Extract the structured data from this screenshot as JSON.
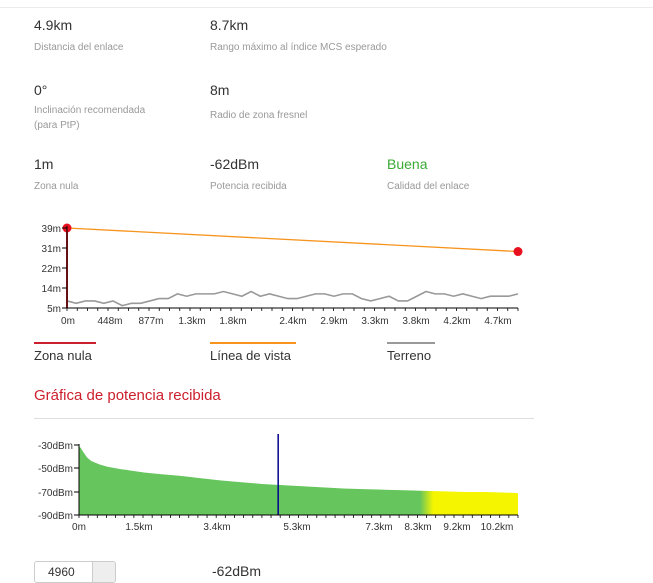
{
  "metrics": {
    "distance": {
      "value": "4.9km",
      "label": "Distancia del enlace"
    },
    "max_range": {
      "value": "8.7km",
      "label": "Rango máximo al índice MCS esperado"
    },
    "tilt": {
      "value": "0°",
      "label": "Inclinación recomendada",
      "label2": "(para PtP)"
    },
    "fresnel": {
      "value": "8m",
      "label": "Radio de zona fresnel"
    },
    "null_zone": {
      "value": "1m",
      "label": "Zona nula"
    },
    "rx_power": {
      "value": "-62dBm",
      "label": "Potencia recibida"
    },
    "quality": {
      "value": "Buena",
      "label": "Calidad del enlace"
    }
  },
  "colors": {
    "null_zone": "#cc1f2d",
    "line_of_sight": "#f7941d",
    "terrain": "#999999",
    "quality_good": "#3aaa35",
    "signal_green": "#66c55c",
    "signal_yellow": "#f5f500",
    "marker": "#00008b"
  },
  "chart_data": [
    {
      "type": "line",
      "x_tick_labels": [
        "0m",
        "448m",
        "877m",
        "1.3km",
        "1.8km",
        "2.4km",
        "2.9km",
        "3.3km",
        "3.8km",
        "4.2km",
        "4.7km"
      ],
      "y_tick_labels": [
        "39m",
        "31m",
        "22m",
        "14m",
        "5m"
      ],
      "xlim": [
        0,
        4.9
      ],
      "ylim": [
        5,
        39
      ],
      "series": [
        {
          "name": "Zona nula",
          "x": [
            0,
            0
          ],
          "y": [
            5,
            39
          ]
        },
        {
          "name": "Línea de vista",
          "x": [
            0,
            4.9
          ],
          "y": [
            39,
            29
          ]
        },
        {
          "name": "Terreno",
          "x": [
            0,
            0.1,
            0.2,
            0.3,
            0.4,
            0.5,
            0.6,
            0.7,
            0.8,
            0.9,
            1.0,
            1.1,
            1.2,
            1.3,
            1.4,
            1.5,
            1.6,
            1.7,
            1.8,
            1.9,
            2.0,
            2.1,
            2.2,
            2.3,
            2.4,
            2.5,
            2.6,
            2.7,
            2.8,
            2.9,
            3.0,
            3.1,
            3.2,
            3.3,
            3.4,
            3.5,
            3.6,
            3.7,
            3.8,
            3.9,
            4.0,
            4.1,
            4.2,
            4.3,
            4.4,
            4.5,
            4.6,
            4.7,
            4.8,
            4.9
          ],
          "y": [
            8,
            7,
            8,
            8,
            7,
            8,
            6,
            7,
            7,
            8,
            9,
            9,
            11,
            10,
            11,
            11,
            11,
            12,
            11,
            10,
            12,
            10,
            11,
            10,
            9,
            9,
            10,
            11,
            11,
            10,
            11,
            11,
            9,
            8,
            9,
            10,
            8,
            8,
            10,
            12,
            11,
            11,
            10,
            11,
            10,
            9,
            10,
            10,
            10,
            11
          ]
        }
      ],
      "legend": [
        "Zona nula",
        "Línea de vista",
        "Terreno"
      ]
    },
    {
      "type": "area",
      "title": "Gráfica de potencia recibida",
      "x_tick_labels": [
        "0m",
        "1.5km",
        "3.4km",
        "5.3km",
        "7.3km",
        "8.3km",
        "9.2km",
        "10.2km"
      ],
      "y_tick_labels": [
        "-30dBm",
        "-50dBm",
        "-70dBm",
        "-90dBm"
      ],
      "xlim": [
        0,
        10.8
      ],
      "ylim": [
        -90,
        -30
      ],
      "x": [
        0,
        0.05,
        0.1,
        0.2,
        0.3,
        0.5,
        0.7,
        1.0,
        1.3,
        1.6,
        2.0,
        2.5,
        3.0,
        3.5,
        4.0,
        4.5,
        5.0,
        5.5,
        6.0,
        6.5,
        7.0,
        7.5,
        8.0,
        8.5,
        9.0,
        9.5,
        10.0,
        10.5,
        10.8
      ],
      "y": [
        -30,
        -32,
        -35,
        -40,
        -43,
        -46,
        -48,
        -50,
        -51.5,
        -53,
        -54.5,
        -56,
        -58,
        -60,
        -61.5,
        -63,
        -64,
        -65,
        -66,
        -67,
        -67.5,
        -68,
        -68.5,
        -69,
        -69.5,
        -70,
        -70,
        -70.5,
        -71
      ],
      "good_until_x": 8.55,
      "marker_x": 4.9
    }
  ],
  "bottom": {
    "freq_value": "4960",
    "power_value": "-62dBm"
  }
}
